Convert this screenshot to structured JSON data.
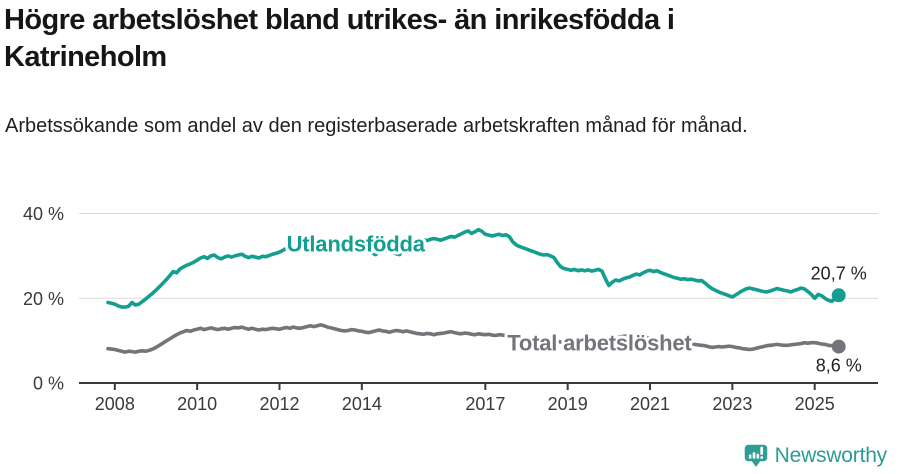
{
  "title": "Högre arbetslöshet bland utrikes- än inrikesfödda i Katrineholm",
  "subtitle": "Arbetssökande som andel av den registerbaserade arbetskraften månad för månad.",
  "footer": {
    "brand": "Newsworthy",
    "logo_icon": "newsworthy-barchart-exclamation-bubble"
  },
  "colors": {
    "accent_teal": "#149E91",
    "neutral_gray": "#76747A",
    "text": "#161616"
  },
  "chart_data": {
    "type": "line",
    "title": "Högre arbetslöshet bland utrikes- än inrikesfödda i Katrineholm",
    "subtitle": "Arbetssökande som andel av den registerbaserade arbetskraften månad för månad.",
    "x_unit": "year (monthly points, decimal year)",
    "xlim": [
      2007.13,
      2026.54
    ],
    "ylim": [
      0,
      43
    ],
    "grid": "horizontal",
    "legend": "inline-labels",
    "y_ticks": [
      {
        "value": 0,
        "label": "0 %"
      },
      {
        "value": 20,
        "label": "20 %"
      },
      {
        "value": 40,
        "label": "40 %"
      }
    ],
    "x_ticks": [
      {
        "value": 2008,
        "label": "2008"
      },
      {
        "value": 2010,
        "label": "2010"
      },
      {
        "value": 2012,
        "label": "2012"
      },
      {
        "value": 2014,
        "label": "2014"
      },
      {
        "value": 2017,
        "label": "2017"
      },
      {
        "value": 2019,
        "label": "2019"
      },
      {
        "value": 2021,
        "label": "2021"
      },
      {
        "value": 2023,
        "label": "2023"
      },
      {
        "value": 2025,
        "label": "2025"
      }
    ],
    "style": {
      "grid_color": "#d9d9d9",
      "axis_color": "#3a3a3e",
      "tick_label_color": "#3a3a3a",
      "value_label_color": "#222222"
    },
    "series": [
      {
        "id": "utlandsfodda",
        "name": "Utlandsfödda",
        "color": "#149E91",
        "end_label": "20,7 %",
        "end_value": 20.7,
        "label_pos": {
          "year": 2013.85,
          "value": 32.9
        },
        "start_year": 2007.8333,
        "interval_years": 0.0833,
        "values": [
          19.0,
          18.8,
          18.6,
          18.2,
          17.9,
          17.9,
          18.1,
          19.0,
          18.4,
          18.6,
          19.2,
          19.8,
          20.5,
          21.2,
          21.9,
          22.7,
          23.5,
          24.4,
          25.3,
          26.3,
          26.0,
          26.9,
          27.4,
          27.8,
          28.1,
          28.5,
          29.0,
          29.5,
          29.8,
          29.4,
          30.0,
          30.2,
          29.6,
          29.3,
          29.7,
          30.0,
          29.7,
          30.0,
          30.2,
          30.4,
          29.9,
          29.6,
          29.9,
          29.7,
          29.5,
          29.9,
          29.8,
          30.1,
          30.4,
          30.6,
          30.9,
          31.3,
          31.8,
          31.5,
          31.9,
          31.6,
          31.5,
          32.0,
          32.2,
          32.5,
          32.3,
          32.7,
          33.0,
          32.8,
          32.5,
          32.8,
          33.2,
          33.5,
          33.1,
          32.7,
          32.5,
          32.8,
          33.0,
          32.7,
          32.2,
          31.7,
          31.2,
          30.7,
          30.3,
          31.0,
          31.5,
          31.2,
          31.0,
          30.8,
          30.5,
          30.3,
          31.5,
          32.0,
          32.4,
          32.8,
          33.2,
          33.5,
          33.8,
          33.6,
          33.9,
          34.1,
          33.9,
          33.7,
          34.0,
          34.3,
          34.6,
          34.4,
          34.8,
          35.2,
          35.6,
          35.9,
          35.3,
          35.7,
          36.2,
          35.8,
          35.1,
          34.9,
          34.7,
          34.9,
          35.1,
          34.8,
          35.0,
          34.5,
          33.3,
          32.6,
          32.2,
          31.9,
          31.6,
          31.3,
          31.0,
          30.7,
          30.4,
          30.2,
          30.3,
          30.0,
          29.6,
          28.4,
          27.4,
          27.0,
          26.8,
          26.6,
          26.8,
          26.5,
          26.7,
          26.5,
          26.7,
          26.4,
          26.6,
          26.8,
          26.4,
          24.6,
          23.0,
          23.8,
          24.3,
          24.1,
          24.5,
          24.8,
          25.0,
          25.4,
          25.7,
          25.5,
          26.0,
          26.4,
          26.6,
          26.3,
          26.5,
          26.1,
          25.8,
          25.5,
          25.2,
          24.9,
          24.7,
          24.5,
          24.6,
          24.4,
          24.5,
          24.3,
          24.1,
          24.2,
          23.6,
          22.9,
          22.3,
          21.9,
          21.5,
          21.2,
          20.9,
          20.6,
          20.3,
          20.8,
          21.3,
          21.8,
          22.2,
          22.4,
          22.2,
          22.0,
          21.8,
          21.6,
          21.5,
          21.7,
          22.0,
          22.3,
          22.1,
          21.9,
          21.7,
          21.5,
          21.8,
          22.1,
          22.4,
          22.2,
          21.6,
          20.9,
          20.0,
          20.9,
          20.6,
          20.0,
          19.5,
          19.3,
          19.9,
          20.7
        ]
      },
      {
        "id": "total",
        "name": "Total arbetslöshet",
        "color": "#76747A",
        "end_label": "8,6 %",
        "end_value": 8.6,
        "label_pos": {
          "year": 2019.77,
          "value": 9.6
        },
        "start_year": 2007.8333,
        "interval_years": 0.0833,
        "values": [
          8.1,
          8.0,
          7.9,
          7.7,
          7.5,
          7.3,
          7.5,
          7.4,
          7.3,
          7.5,
          7.6,
          7.5,
          7.7,
          8.0,
          8.4,
          8.9,
          9.4,
          9.9,
          10.4,
          10.9,
          11.4,
          11.8,
          12.1,
          12.4,
          12.2,
          12.5,
          12.7,
          12.9,
          12.6,
          12.8,
          13.0,
          12.8,
          12.6,
          12.8,
          12.9,
          12.7,
          12.9,
          13.1,
          13.0,
          13.2,
          12.9,
          12.7,
          12.9,
          12.7,
          12.5,
          12.7,
          12.6,
          12.8,
          12.9,
          12.8,
          12.7,
          12.9,
          13.1,
          12.9,
          13.2,
          13.0,
          12.9,
          13.1,
          13.3,
          13.5,
          13.3,
          13.5,
          13.7,
          13.5,
          13.2,
          13.0,
          12.8,
          12.6,
          12.4,
          12.3,
          12.4,
          12.6,
          12.5,
          12.3,
          12.2,
          12.0,
          11.9,
          12.1,
          12.3,
          12.5,
          12.3,
          12.2,
          12.0,
          12.2,
          12.4,
          12.3,
          12.1,
          12.3,
          12.1,
          11.9,
          11.7,
          11.6,
          11.5,
          11.7,
          11.6,
          11.4,
          11.6,
          11.7,
          11.8,
          12.0,
          12.1,
          11.9,
          11.7,
          11.6,
          11.8,
          11.7,
          11.5,
          11.4,
          11.6,
          11.5,
          11.4,
          11.5,
          11.3,
          11.2,
          11.4,
          11.3,
          11.2,
          11.1,
          10.9,
          10.8,
          10.7,
          10.6,
          10.5,
          10.4,
          10.3,
          10.2,
          10.1,
          10.0,
          10.1,
          10.0,
          9.9,
          9.8,
          9.7,
          9.6,
          9.7,
          9.6,
          9.5,
          9.6,
          9.5,
          9.4,
          9.5,
          9.4,
          9.5,
          9.6,
          9.5,
          9.7,
          9.9,
          10.2,
          10.5,
          10.8,
          11.0,
          11.1,
          11.2,
          11.1,
          11.0,
          10.9,
          10.8,
          10.7,
          10.6,
          10.5,
          10.4,
          10.2,
          10.1,
          9.9,
          9.8,
          9.7,
          9.6,
          9.5,
          9.4,
          9.3,
          9.2,
          9.1,
          9.0,
          8.9,
          8.8,
          8.6,
          8.4,
          8.5,
          8.6,
          8.5,
          8.6,
          8.7,
          8.6,
          8.4,
          8.3,
          8.1,
          8.0,
          7.9,
          8.0,
          8.2,
          8.4,
          8.6,
          8.8,
          8.9,
          9.0,
          9.1,
          9.0,
          8.9,
          8.9,
          9.0,
          9.1,
          9.2,
          9.3,
          9.5,
          9.4,
          9.5,
          9.5,
          9.4,
          9.2,
          9.1,
          8.9,
          8.8,
          8.7,
          8.6
        ]
      }
    ]
  }
}
